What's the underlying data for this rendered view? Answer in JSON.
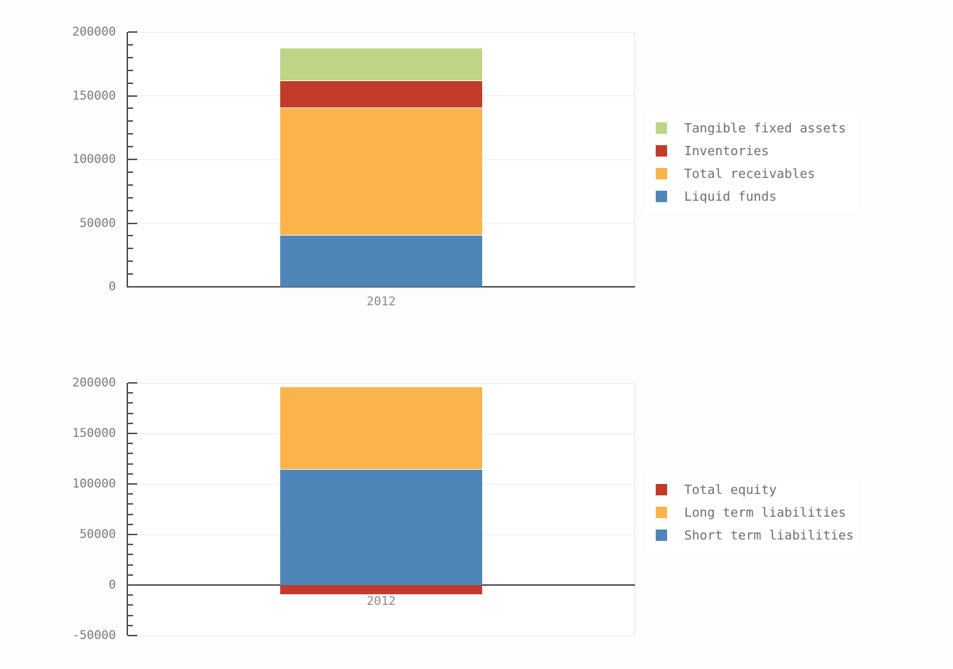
{
  "page": {
    "background": "#fdfdfd",
    "text_color": "#6e6e6e",
    "axis_color": "#4d4d4d",
    "gridline_color": "#ececec"
  },
  "chart_data": [
    {
      "type": "bar",
      "stacked": true,
      "title": "",
      "xlabel": "",
      "ylabel": "",
      "categories": [
        "2012"
      ],
      "series": [
        {
          "name": "Tangible fixed assets",
          "color": "#bdd585",
          "values": [
            25000
          ]
        },
        {
          "name": "Inventories",
          "color": "#c23b2b",
          "values": [
            21000
          ]
        },
        {
          "name": "Total receivables",
          "color": "#fbb44c",
          "values": [
            100000
          ]
        },
        {
          "name": "Liquid funds",
          "color": "#4e86b8",
          "values": [
            41000
          ]
        }
      ],
      "ylim": [
        0,
        200000
      ],
      "ytick_major": 50000,
      "ytick_minor": 10000,
      "yticklabels": [
        "0",
        "50000",
        "100000",
        "150000",
        "200000"
      ],
      "grid": true,
      "legend_position": "right"
    },
    {
      "type": "bar",
      "stacked": true,
      "title": "",
      "xlabel": "",
      "ylabel": "",
      "categories": [
        "2012"
      ],
      "series": [
        {
          "name": "Total equity",
          "color": "#c23b2b",
          "values": [
            -9000
          ]
        },
        {
          "name": "Long term liabilities",
          "color": "#fbb44c",
          "values": [
            81000
          ]
        },
        {
          "name": "Short term liabilities",
          "color": "#4e86b8",
          "values": [
            115000
          ]
        }
      ],
      "ylim": [
        -50000,
        200000
      ],
      "ytick_major": 50000,
      "ytick_minor": 10000,
      "yticklabels": [
        "-50000",
        "0",
        "50000",
        "100000",
        "150000",
        "200000"
      ],
      "grid": true,
      "legend_position": "right"
    }
  ]
}
